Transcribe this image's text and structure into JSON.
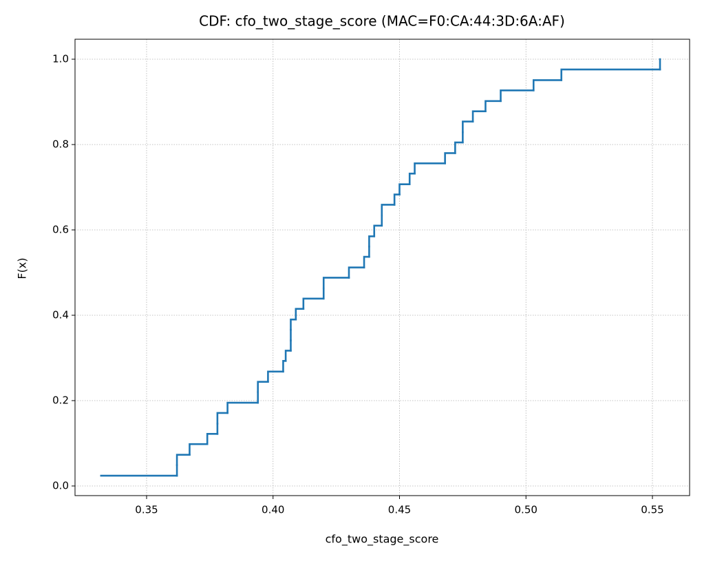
{
  "chart_data": {
    "type": "step",
    "title": "CDF: cfo_two_stage_score (MAC=F0:CA:44:3D:6A:AF)",
    "x_label": "cfo_two_stage_score",
    "y_label": "F(x)",
    "x": [
      0.332,
      0.362,
      0.362,
      0.367,
      0.374,
      0.378,
      0.378,
      0.382,
      0.394,
      0.394,
      0.398,
      0.404,
      0.405,
      0.407,
      0.407,
      0.407,
      0.409,
      0.412,
      0.42,
      0.42,
      0.43,
      0.436,
      0.438,
      0.438,
      0.44,
      0.443,
      0.443,
      0.448,
      0.45,
      0.454,
      0.456,
      0.468,
      0.472,
      0.475,
      0.475,
      0.479,
      0.484,
      0.49,
      0.503,
      0.514,
      0.553
    ],
    "values": [
      0.024,
      0.049,
      0.073,
      0.098,
      0.122,
      0.146,
      0.171,
      0.195,
      0.22,
      0.244,
      0.268,
      0.293,
      0.317,
      0.341,
      0.366,
      0.39,
      0.415,
      0.439,
      0.463,
      0.488,
      0.512,
      0.537,
      0.561,
      0.585,
      0.61,
      0.634,
      0.659,
      0.683,
      0.707,
      0.732,
      0.756,
      0.78,
      0.805,
      0.829,
      0.854,
      0.878,
      0.902,
      0.927,
      0.951,
      0.976,
      1.0
    ],
    "color": "#1f77b4",
    "xlim": [
      0.3217,
      0.5647
    ],
    "ylim": [
      -0.0226,
      1.0468
    ],
    "xticks": [
      0.35,
      {
        "value": 0.4,
        "label": "0.40"
      },
      0.45,
      {
        "value": 0.5,
        "label": "0.50"
      },
      0.55
    ],
    "yticks": [
      {
        "value": 0,
        "label": "0.0"
      },
      0.2,
      0.4,
      0.6,
      0.8,
      {
        "value": 1,
        "label": "1.0"
      }
    ],
    "grid": true
  }
}
